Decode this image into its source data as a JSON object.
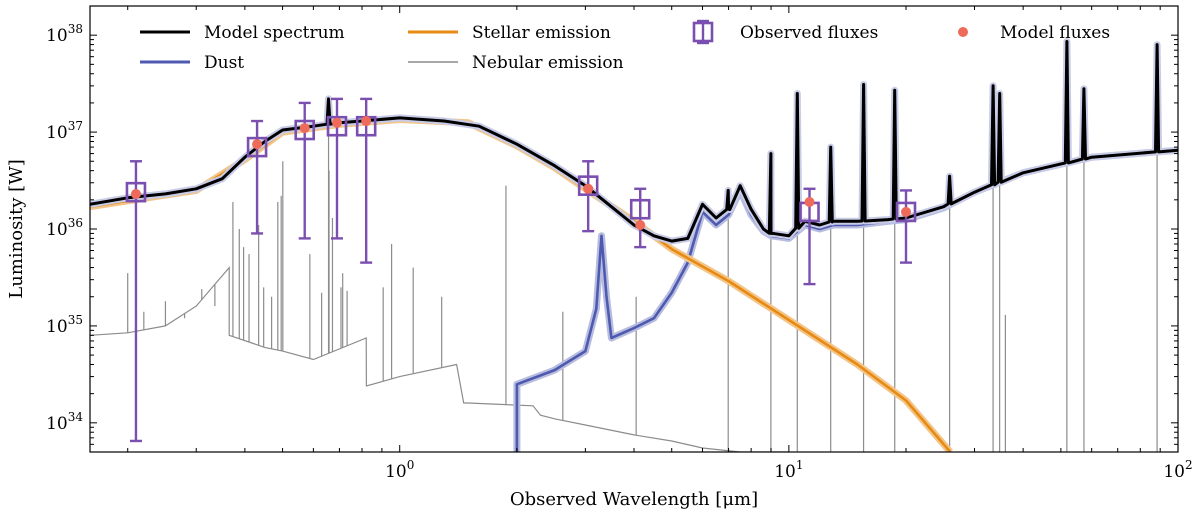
{
  "chart_data": {
    "type": "line",
    "title": "",
    "xlabel": "Observed Wavelength [μm]",
    "ylabel": "Luminosity [W]",
    "xscale": "log",
    "yscale": "log",
    "xlim": [
      0.16,
      100
    ],
    "ylim": [
      5e+33,
      2e+38
    ],
    "grid": false,
    "legend_position": "top",
    "x_ticks": [
      {
        "value": 1,
        "base": "10",
        "exp": "0"
      },
      {
        "value": 10,
        "base": "10",
        "exp": "1"
      },
      {
        "value": 100,
        "base": "10",
        "exp": "2"
      }
    ],
    "y_ticks": [
      {
        "value": 1e+34,
        "base": "10",
        "exp": "34"
      },
      {
        "value": 1e+35,
        "base": "10",
        "exp": "35"
      },
      {
        "value": 1e+36,
        "base": "10",
        "exp": "36"
      },
      {
        "value": 1e+37,
        "base": "10",
        "exp": "37"
      },
      {
        "value": 1e+38,
        "base": "10",
        "exp": "38"
      }
    ],
    "legend": [
      {
        "label": "Model spectrum",
        "kind": "line",
        "color": "#000000"
      },
      {
        "label": "Dust",
        "kind": "line",
        "color": "#4d5aaf"
      },
      {
        "label": "Stellar emission",
        "kind": "line",
        "color": "#e88a12"
      },
      {
        "label": "Nebular emission",
        "kind": "line",
        "color": "#8c8c8c"
      },
      {
        "label": "Observed fluxes",
        "kind": "errorbox",
        "color": "#7a4fb0"
      },
      {
        "label": "Model fluxes",
        "kind": "dot",
        "color": "#ee6a5a"
      }
    ],
    "series": [
      {
        "name": "Model spectrum",
        "color": "#000000",
        "x": [
          0.16,
          0.2,
          0.25,
          0.3,
          0.35,
          0.4,
          0.45,
          0.5,
          0.6,
          0.7,
          0.8,
          1.0,
          1.3,
          1.6,
          2.0,
          2.5,
          3.0,
          3.5,
          4.0,
          4.5,
          5.0,
          5.5,
          6.0,
          6.5,
          7.0,
          7.5,
          8.0,
          8.6,
          9.0,
          10.0,
          11.0,
          12.0,
          13.0,
          15.0,
          18.0,
          20.0,
          25.0,
          30.0,
          40.0,
          60.0,
          100.0
        ],
        "y": [
          1.8e+36,
          2.1e+36,
          2.3e+36,
          2.6e+36,
          3.3e+36,
          5.5e+36,
          8e+36,
          1.05e+37,
          1.15e+37,
          1.25e+37,
          1.3e+37,
          1.4e+37,
          1.3e+37,
          1.15e+37,
          7.5e+36,
          4.5e+36,
          2.8e+36,
          1.7e+36,
          1.1e+36,
          8.5e+35,
          7.5e+35,
          8e+35,
          1.8e+36,
          1.3e+36,
          1.6e+36,
          2.8e+36,
          1.6e+36,
          1e+36,
          9e+35,
          8.5e+35,
          1.2e+36,
          1.1e+36,
          1.2e+36,
          1.2e+36,
          1.25e+36,
          1.3e+36,
          1.7e+36,
          2.4e+36,
          3.8e+36,
          5.5e+36,
          6.5e+36
        ]
      },
      {
        "name": "Stellar emission",
        "color": "#e88a12",
        "x": [
          0.16,
          0.3,
          0.4,
          0.5,
          0.7,
          1.0,
          1.5,
          2.0,
          2.5,
          3.0,
          4.0,
          5.0,
          7.0,
          10.0,
          15.0,
          20.0,
          26.0
        ],
        "y": [
          1.7e+36,
          2.5e+36,
          5.2e+36,
          1e+37,
          1.2e+37,
          1.35e+37,
          1.25e+37,
          7.2e+36,
          4.3e+36,
          2.6e+36,
          1.2e+36,
          6.2e+35,
          2.9e+35,
          1.15e+35,
          4e+34,
          1.7e+34,
          5e+33
        ]
      },
      {
        "name": "Dust",
        "color": "#4d5aaf",
        "x": [
          2.0,
          2.0,
          2.5,
          3.0,
          3.2,
          3.3,
          3.4,
          3.5,
          4.0,
          4.5,
          5.0,
          5.5,
          6.0,
          6.5,
          7.0,
          7.5,
          8.0,
          8.6,
          9.0,
          10.0,
          11.0,
          12.0,
          13.0,
          15.0,
          18.0,
          20.0,
          25.0,
          30.0,
          40.0,
          60.0,
          100.0
        ],
        "y": [
          5e+33,
          2.5e+34,
          3.5e+34,
          5.5e+34,
          1.5e+35,
          8.5e+35,
          2e+35,
          7.5e+34,
          9.5e+34,
          1.2e+35,
          2.2e+35,
          4.5e+35,
          1.5e+36,
          1.1e+36,
          1.4e+36,
          2.5e+36,
          1.4e+36,
          9.5e+35,
          8.5e+35,
          8e+35,
          1.1e+36,
          1e+36,
          1.1e+36,
          1.1e+36,
          1.2e+36,
          1.25e+36,
          1.65e+36,
          2.4e+36,
          3.8e+36,
          5.5e+36,
          6.5e+36
        ]
      },
      {
        "name": "Nebular emission",
        "color": "#8c8c8c",
        "x": [
          0.16,
          0.2,
          0.25,
          0.3,
          0.3646,
          0.3647,
          0.45,
          0.5,
          0.6,
          0.82,
          0.821,
          1.0,
          1.4,
          1.46,
          1.5,
          2.2,
          2.3,
          2.5,
          3.0,
          4.0,
          5.0,
          6.0,
          7.5,
          10.0
        ],
        "y": [
          8e+34,
          8.5e+34,
          1e+35,
          1.6e+35,
          4e+35,
          8e+34,
          6e+34,
          5.5e+34,
          4.5e+34,
          7.5e+34,
          2.4e+34,
          3e+34,
          4e+34,
          1.6e+34,
          1.6e+34,
          1.5e+34,
          1.2e+34,
          1.1e+34,
          9.5e+33,
          7.5e+33,
          6.5e+33,
          5.5e+33,
          5e+33,
          5e+33
        ]
      }
    ],
    "nebular_lines": [
      {
        "x": 0.2,
        "y": 3.5e+35
      },
      {
        "x": 0.22,
        "y": 1.4e+35
      },
      {
        "x": 0.25,
        "y": 1.8e+35
      },
      {
        "x": 0.28,
        "y": 1.2e+35
      },
      {
        "x": 0.31,
        "y": 2.4e+35
      },
      {
        "x": 0.335,
        "y": 1.6e+35
      },
      {
        "x": 0.3727,
        "y": 1.9e+36
      },
      {
        "x": 0.387,
        "y": 1e+36
      },
      {
        "x": 0.397,
        "y": 6.5e+35
      },
      {
        "x": 0.41,
        "y": 5.5e+35
      },
      {
        "x": 0.434,
        "y": 1.1e+36
      },
      {
        "x": 0.4471,
        "y": 2.5e+35
      },
      {
        "x": 0.4686,
        "y": 2e+35
      },
      {
        "x": 0.4861,
        "y": 1.9e+36
      },
      {
        "x": 0.4959,
        "y": 2.2e+36
      },
      {
        "x": 0.5007,
        "y": 5e+36
      },
      {
        "x": 0.5876,
        "y": 5.5e+35
      },
      {
        "x": 0.63,
        "y": 2.2e+35
      },
      {
        "x": 0.6563,
        "y": 2.2e+37
      },
      {
        "x": 0.6583,
        "y": 4e+36
      },
      {
        "x": 0.6717,
        "y": 1.3e+36
      },
      {
        "x": 0.7065,
        "y": 2.5e+35
      },
      {
        "x": 0.7136,
        "y": 3.5e+35
      },
      {
        "x": 0.7325,
        "y": 2.3e+35
      },
      {
        "x": 0.9069,
        "y": 2.5e+35
      },
      {
        "x": 0.9531,
        "y": 7e+35
      },
      {
        "x": 1.083,
        "y": 4e+35
      },
      {
        "x": 1.2818,
        "y": 2e+35
      },
      {
        "x": 1.8751,
        "y": 2.8e+36
      },
      {
        "x": 2.6252,
        "y": 1.4e+35
      },
      {
        "x": 4.0512,
        "y": 2e+35
      },
      {
        "x": 6.985,
        "y": 2.5e+36
      },
      {
        "x": 8.991,
        "y": 6e+36
      },
      {
        "x": 10.51,
        "y": 2.5e+37
      },
      {
        "x": 12.81,
        "y": 7e+36
      },
      {
        "x": 15.56,
        "y": 3.1e+37
      },
      {
        "x": 18.71,
        "y": 2.7e+37
      },
      {
        "x": 25.89,
        "y": 3.5e+36
      },
      {
        "x": 33.48,
        "y": 3e+37
      },
      {
        "x": 34.81,
        "y": 2.5e+37
      },
      {
        "x": 36.01,
        "y": 1.3e+35
      },
      {
        "x": 51.81,
        "y": 8.6e+37
      },
      {
        "x": 57.32,
        "y": 2.8e+37
      },
      {
        "x": 88.36,
        "y": 8e+37
      }
    ],
    "observed_fluxes": [
      {
        "x": 0.21,
        "y": 2.4e+36,
        "ylo": 6.5e+33,
        "yhi": 5e+36
      },
      {
        "x": 0.43,
        "y": 7e+36,
        "ylo": 9e+35,
        "yhi": 1.3e+37
      },
      {
        "x": 0.57,
        "y": 1.05e+37,
        "ylo": 8e+35,
        "yhi": 2e+37
      },
      {
        "x": 0.69,
        "y": 1.15e+37,
        "ylo": 8e+35,
        "yhi": 2.2e+37
      },
      {
        "x": 0.82,
        "y": 1.15e+37,
        "ylo": 4.5e+35,
        "yhi": 2.2e+37
      },
      {
        "x": 3.05,
        "y": 2.8e+36,
        "ylo": 9.5e+35,
        "yhi": 5e+36
      },
      {
        "x": 4.15,
        "y": 1.6e+36,
        "ylo": 6.5e+35,
        "yhi": 2.6e+36
      },
      {
        "x": 11.3,
        "y": 1.5e+36,
        "ylo": 2.7e+35,
        "yhi": 2.6e+36
      },
      {
        "x": 20.0,
        "y": 1.5e+36,
        "ylo": 4.5e+35,
        "yhi": 2.5e+36
      }
    ],
    "model_fluxes": [
      {
        "x": 0.21,
        "y": 2.3e+36
      },
      {
        "x": 0.43,
        "y": 7.5e+36
      },
      {
        "x": 0.57,
        "y": 1.1e+37
      },
      {
        "x": 0.69,
        "y": 1.25e+37
      },
      {
        "x": 0.82,
        "y": 1.3e+37
      },
      {
        "x": 3.05,
        "y": 2.6e+36
      },
      {
        "x": 4.15,
        "y": 1.1e+36
      },
      {
        "x": 11.3,
        "y": 1.9e+36
      },
      {
        "x": 20.0,
        "y": 1.5e+36
      }
    ]
  }
}
